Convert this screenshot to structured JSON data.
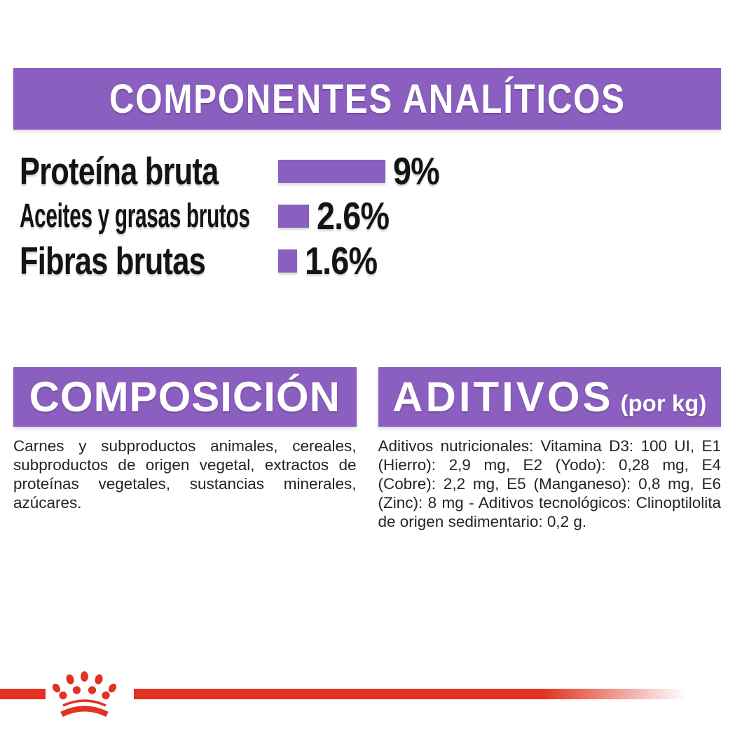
{
  "colors": {
    "purple": "#8B5FC0",
    "red": "#E13222",
    "text": "#141414",
    "body_text": "#242424",
    "banner_text": "#ffffff",
    "background": "#ffffff"
  },
  "analytics": {
    "title": "COMPONENTES ANALÍTICOS",
    "rows": [
      {
        "label": "Proteína bruta",
        "value": 9,
        "display": "9%"
      },
      {
        "label": "Aceites y grasas brutos",
        "value": 2.6,
        "display": "2.6%"
      },
      {
        "label": "Fibras brutas",
        "value": 1.6,
        "display": "1.6%"
      }
    ]
  },
  "composition": {
    "title": "COMPOSICIÓN",
    "body": "Carnes y subproductos animales, cereales, subproductos de origen vegetal, extractos de proteínas vegetales, sustancias minerales, azúcares."
  },
  "additives": {
    "title": "ADITIVOS",
    "unit_label": "(por kg)",
    "body": "Aditivos nutricionales: Vitamina D3: 100 UI, E1 (Hierro): 2,9 mg, E2 (Yodo): 0,28 mg, E4 (Cobre): 2,2 mg, E5 (Manganeso): 0,8 mg, E6 (Zinc): 8 mg - Aditivos tecnológicos: Clinoptilolita de origen sedimentario: 0,2 g."
  },
  "footer": {
    "logo": "royal-canin-crown"
  },
  "chart_data": {
    "type": "bar",
    "orientation": "horizontal",
    "title": "COMPONENTES ANALÍTICOS",
    "categories": [
      "Proteína bruta",
      "Aceites y grasas brutos",
      "Fibras brutas"
    ],
    "values": [
      9,
      2.6,
      1.6
    ],
    "unit": "%",
    "value_labels": [
      "9%",
      "2.6%",
      "1.6%"
    ],
    "xlim": [
      0,
      10
    ],
    "bar_color": "#8B5FC0",
    "legend": false,
    "grid": false
  }
}
